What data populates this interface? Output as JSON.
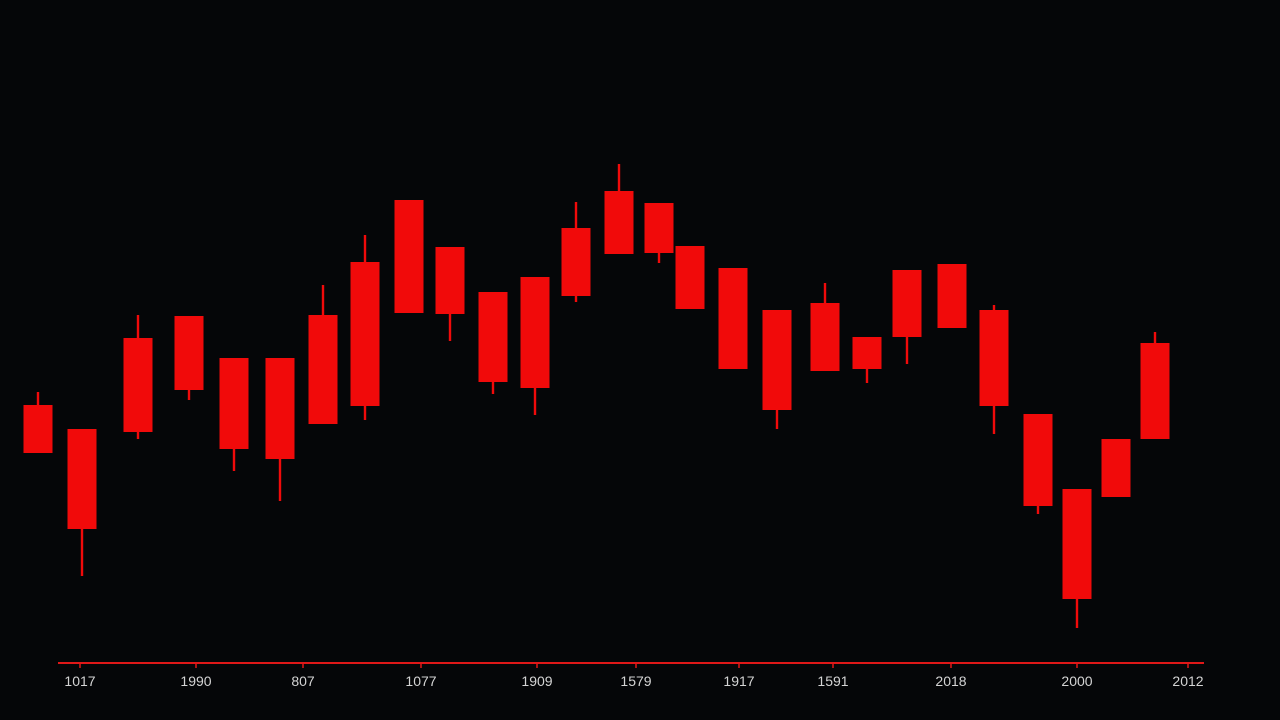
{
  "chart_data": {
    "type": "candlestick",
    "x_tick_labels": [
      "1017",
      "1990",
      "807",
      "1077",
      "1909",
      "1579",
      "1917",
      "1591",
      "2018",
      "2000",
      "2012"
    ],
    "y_range": [
      0,
      720
    ],
    "grid": false,
    "legend": "none",
    "colors": {
      "background": "#050608",
      "candle": "#f10a0a",
      "axis": "#e01818",
      "tick_text": "#d4d4d4"
    },
    "candles": [
      {
        "open": 315,
        "close": 267,
        "high": 328,
        "low": 267
      },
      {
        "open": 291,
        "close": 191,
        "high": 291,
        "low": 144
      },
      {
        "open": 382,
        "close": 288,
        "high": 405,
        "low": 281
      },
      {
        "open": 404,
        "close": 330,
        "high": 404,
        "low": 320
      },
      {
        "open": 362,
        "close": 271,
        "high": 362,
        "low": 249
      },
      {
        "open": 362,
        "close": 261,
        "high": 362,
        "low": 219
      },
      {
        "open": 405,
        "close": 296,
        "high": 435,
        "low": 296
      },
      {
        "open": 458,
        "close": 314,
        "high": 485,
        "low": 300
      },
      {
        "open": 520,
        "close": 407,
        "high": 520,
        "low": 407
      },
      {
        "open": 473,
        "close": 406,
        "high": 473,
        "low": 379
      },
      {
        "open": 428,
        "close": 338,
        "high": 428,
        "low": 326
      },
      {
        "open": 443,
        "close": 332,
        "high": 443,
        "low": 305
      },
      {
        "open": 492,
        "close": 424,
        "high": 518,
        "low": 418
      },
      {
        "open": 529,
        "close": 466,
        "high": 556,
        "low": 466
      },
      {
        "open": 517,
        "close": 467,
        "high": 517,
        "low": 457
      },
      {
        "open": 474,
        "close": 411,
        "high": 474,
        "low": 411
      },
      {
        "open": 452,
        "close": 351,
        "high": 452,
        "low": 351
      },
      {
        "open": 410,
        "close": 310,
        "high": 410,
        "low": 291
      },
      {
        "open": 417,
        "close": 349,
        "high": 437,
        "low": 349
      },
      {
        "open": 383,
        "close": 351,
        "high": 383,
        "low": 337
      },
      {
        "open": 450,
        "close": 383,
        "high": 450,
        "low": 356
      },
      {
        "open": 456,
        "close": 392,
        "high": 456,
        "low": 392
      },
      {
        "open": 410,
        "close": 314,
        "high": 415,
        "low": 286
      },
      {
        "open": 306,
        "close": 214,
        "high": 306,
        "low": 206
      },
      {
        "open": 231,
        "close": 121,
        "high": 231,
        "low": 92
      },
      {
        "open": 281,
        "close": 223,
        "high": 281,
        "low": 223
      },
      {
        "open": 377,
        "close": 281,
        "high": 388,
        "low": 281
      }
    ]
  }
}
